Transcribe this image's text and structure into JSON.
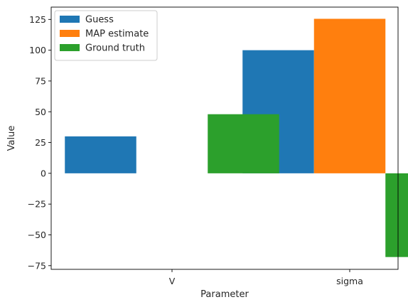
{
  "chart_data": {
    "type": "bar",
    "categories": [
      "V",
      "sigma"
    ],
    "series": [
      {
        "name": "Guess",
        "values": [
          30,
          100
        ],
        "color": "#1f77b4"
      },
      {
        "name": "MAP estimate",
        "values": [
          0,
          125.5
        ],
        "color": "#ff7f0e"
      },
      {
        "name": "Ground truth",
        "values": [
          48,
          -68
        ],
        "color": "#2ca02c"
      }
    ],
    "xlabel": "Parameter",
    "ylabel": "Value",
    "ylim": [
      -78,
      135
    ],
    "yticks": [
      125,
      100,
      75,
      50,
      25,
      0,
      -25,
      -50,
      -75
    ],
    "ytick_labels": [
      "125",
      "100",
      "75",
      "50",
      "25",
      "0",
      "−25",
      "−50",
      "−75"
    ],
    "grid": false,
    "legend_position": "top-left"
  }
}
